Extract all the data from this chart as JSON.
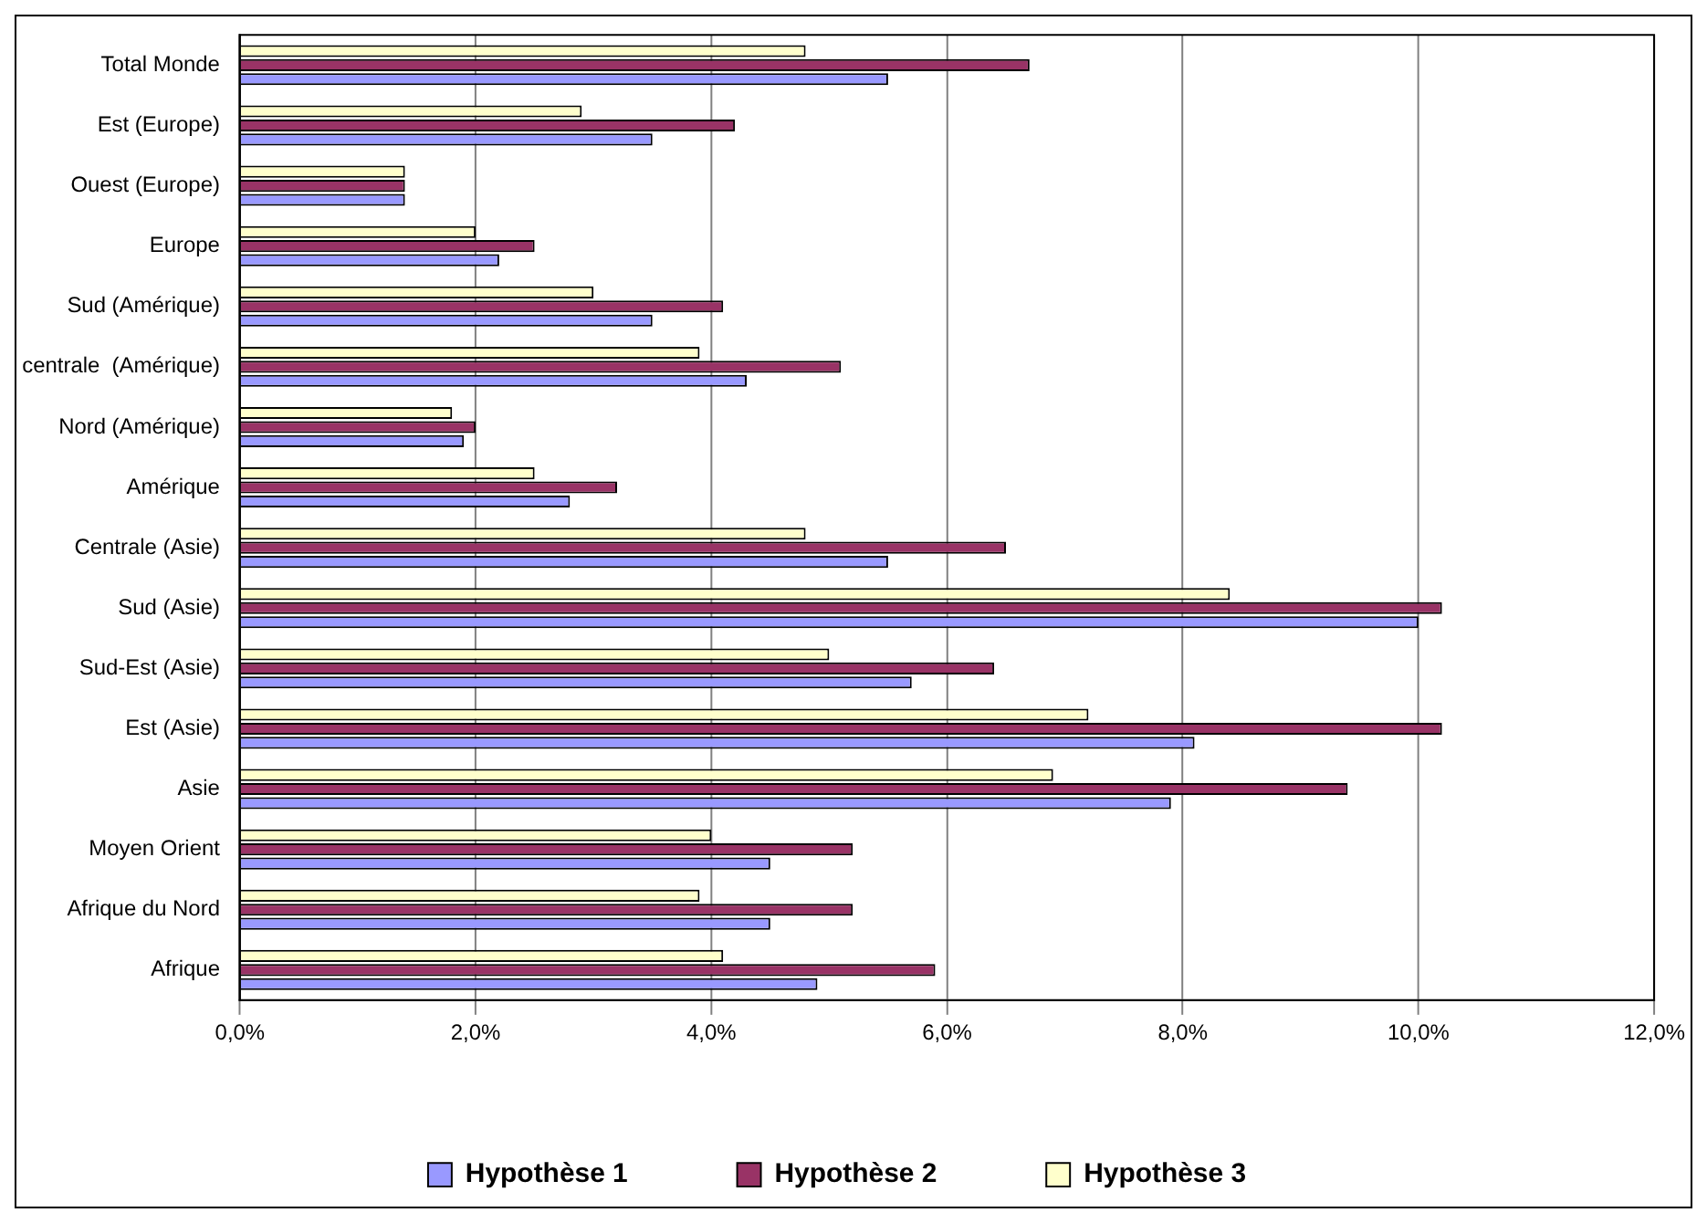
{
  "chart_data": {
    "type": "bar",
    "orientation": "horizontal",
    "categories": [
      "Total Monde",
      "Est (Europe)",
      "Ouest (Europe)",
      "Europe",
      "Sud (Amérique)",
      "centrale  (Amérique)",
      "Nord (Amérique)",
      "Amérique",
      "Centrale (Asie)",
      "Sud (Asie)",
      "Sud-Est (Asie)",
      "Est (Asie)",
      "Asie",
      "Moyen Orient",
      "Afrique du Nord",
      "Afrique"
    ],
    "series": [
      {
        "name": "Hypothèse 1",
        "color": "#9999ff",
        "values": [
          5.5,
          3.5,
          1.4,
          2.2,
          3.5,
          4.3,
          1.9,
          2.8,
          5.5,
          10.0,
          5.7,
          8.1,
          7.9,
          4.5,
          4.5,
          4.9
        ]
      },
      {
        "name": "Hypothèse 2",
        "color": "#993366",
        "values": [
          6.7,
          4.2,
          1.4,
          2.5,
          4.1,
          5.1,
          2.0,
          3.2,
          6.5,
          10.2,
          6.4,
          10.2,
          9.4,
          5.2,
          5.2,
          5.9
        ]
      },
      {
        "name": "Hypothèse 3",
        "color": "#ffffcc",
        "values": [
          4.8,
          2.9,
          1.4,
          2.0,
          3.0,
          3.9,
          1.8,
          2.5,
          4.8,
          8.4,
          5.0,
          7.2,
          6.9,
          4.0,
          3.9,
          4.1
        ]
      }
    ],
    "xlim": [
      0,
      12
    ],
    "xticks": [
      {
        "value": 0,
        "label": "0,0%"
      },
      {
        "value": 2,
        "label": "2,0%"
      },
      {
        "value": 4,
        "label": "4,0%"
      },
      {
        "value": 6,
        "label": "6,0%"
      },
      {
        "value": 8,
        "label": "8,0%"
      },
      {
        "value": 10,
        "label": "10,0%"
      },
      {
        "value": 12,
        "label": "12,0%"
      }
    ],
    "grid": "x",
    "legend": "bottom"
  }
}
